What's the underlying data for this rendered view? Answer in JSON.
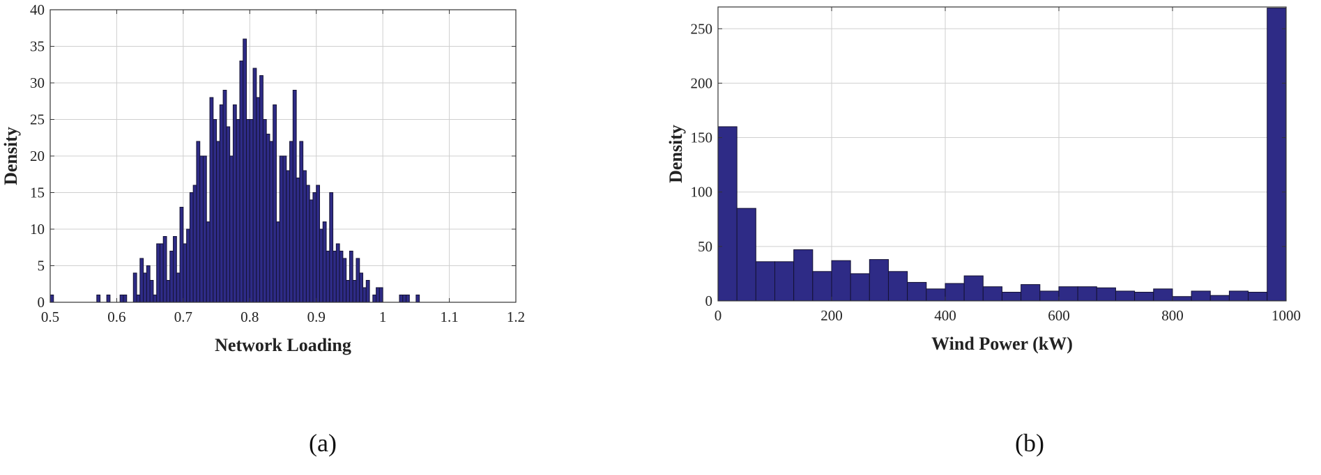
{
  "captions": [
    "(a)",
    "(b)"
  ],
  "colors": {
    "bar_fill": "#2e2b86",
    "bar_stroke": "#141233",
    "grid": "#cfcfcf",
    "axis": "#333333"
  },
  "chart_data": [
    {
      "type": "bar",
      "subtype": "histogram",
      "title": "",
      "xlabel": "Network Loading",
      "ylabel": "Density",
      "xlim": [
        0.5,
        1.2
      ],
      "ylim": [
        0,
        40
      ],
      "xticks": [
        "0.5",
        "0.6",
        "0.7",
        "0.8",
        "0.9",
        "1",
        "1.1",
        "1.2"
      ],
      "yticks": [
        "0",
        "5",
        "10",
        "15",
        "20",
        "25",
        "30",
        "35",
        "40"
      ],
      "grid": true,
      "bin_start": 0.5,
      "bin_width": 0.005,
      "values": [
        1,
        0,
        0,
        0,
        0,
        0,
        0,
        0,
        0,
        0,
        0,
        0,
        0,
        0,
        1,
        0,
        0,
        1,
        0,
        0,
        0,
        1,
        1,
        0,
        0,
        4,
        1,
        6,
        4,
        5,
        3,
        1,
        8,
        8,
        9,
        3,
        7,
        9,
        4,
        13,
        8,
        10,
        15,
        16,
        22,
        20,
        20,
        11,
        28,
        25,
        22,
        27,
        29,
        24,
        20,
        27,
        25,
        33,
        36,
        25,
        25,
        32,
        28,
        31,
        25,
        23,
        22,
        27,
        11,
        20,
        20,
        18,
        22,
        29,
        17,
        22,
        18,
        16,
        14,
        15,
        16,
        10,
        11,
        7,
        15,
        7,
        8,
        7,
        6,
        3,
        7,
        3,
        6,
        4,
        2,
        3,
        0,
        1,
        2,
        2,
        0,
        0,
        0,
        0,
        0,
        1,
        1,
        1,
        0,
        0,
        1
      ]
    },
    {
      "type": "bar",
      "subtype": "histogram",
      "title": "",
      "xlabel": "Wind Power (kW)",
      "ylabel": "Density",
      "xlim": [
        0,
        1000
      ],
      "ylim": [
        0,
        270
      ],
      "xticks": [
        "0",
        "200",
        "400",
        "600",
        "800",
        "1000"
      ],
      "yticks": [
        "0",
        "50",
        "100",
        "150",
        "200",
        "250"
      ],
      "grid": true,
      "bin_start": 0,
      "bin_width": 33.33,
      "values": [
        160,
        85,
        36,
        36,
        47,
        27,
        37,
        25,
        38,
        27,
        17,
        11,
        16,
        23,
        13,
        8,
        15,
        9,
        13,
        13,
        12,
        9,
        8,
        11,
        4,
        9,
        5,
        9,
        8,
        269
      ]
    }
  ]
}
